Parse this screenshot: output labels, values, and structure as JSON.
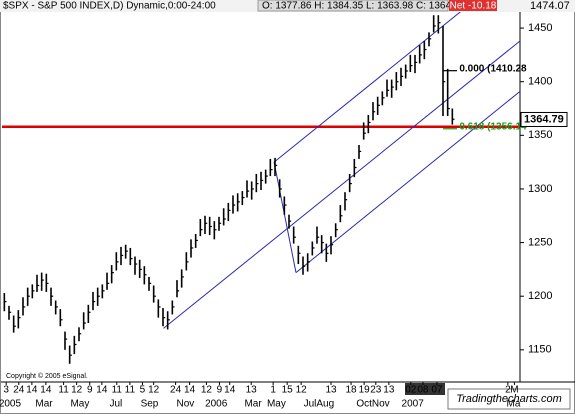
{
  "chart_data": {
    "type": "hlc",
    "symbol_text": "$SPX - S&P 500 INDEX,D) Dynamic,0:00-24:00",
    "ohlc_text": "O: 1377.86 H: 1384.35 L: 1363.98 C: 1364.79",
    "net_text": "Net -10.18",
    "top_price_label": "1474.07",
    "copyright": "Copyright © 2005 eSignal.",
    "watermark": "Tradingthecharts.com",
    "color": "#000000",
    "high": [
      1203,
      1191,
      1182,
      1187,
      1199,
      1208,
      1211,
      1220,
      1222,
      1221,
      1208,
      1196,
      1188,
      1167,
      1154,
      1163,
      1171,
      1185,
      1192,
      1204,
      1208,
      1211,
      1222,
      1229,
      1241,
      1246,
      1248,
      1245,
      1237,
      1234,
      1228,
      1218,
      1210,
      1197,
      1189,
      1186,
      1196,
      1215,
      1225,
      1241,
      1253,
      1258,
      1272,
      1275,
      1274,
      1270,
      1274,
      1282,
      1287,
      1294,
      1296,
      1298,
      1308,
      1307,
      1314,
      1316,
      1318,
      1328,
      1329,
      1309,
      1293,
      1276,
      1265,
      1247,
      1237,
      1240,
      1251,
      1265,
      1257,
      1249,
      1256,
      1268,
      1285,
      1297,
      1314,
      1328,
      1341,
      1362,
      1369,
      1381,
      1386,
      1391,
      1402,
      1402,
      1409,
      1413,
      1416,
      1425,
      1425,
      1434,
      1438,
      1446,
      1462,
      1462,
      1452,
      1412,
      1375
    ],
    "low": [
      1186,
      1178,
      1166,
      1170,
      1182,
      1191,
      1198,
      1204,
      1205,
      1204,
      1191,
      1183,
      1172,
      1150,
      1137,
      1146,
      1158,
      1169,
      1175,
      1187,
      1191,
      1198,
      1206,
      1212,
      1224,
      1229,
      1235,
      1229,
      1220,
      1217,
      1211,
      1205,
      1194,
      1180,
      1172,
      1169,
      1183,
      1199,
      1208,
      1224,
      1236,
      1245,
      1256,
      1258,
      1257,
      1253,
      1261,
      1266,
      1270,
      1277,
      1279,
      1285,
      1292,
      1290,
      1297,
      1299,
      1305,
      1312,
      1312,
      1292,
      1276,
      1263,
      1249,
      1230,
      1220,
      1223,
      1238,
      1249,
      1240,
      1232,
      1239,
      1255,
      1269,
      1280,
      1297,
      1311,
      1328,
      1346,
      1352,
      1364,
      1369,
      1378,
      1386,
      1385,
      1392,
      1396,
      1403,
      1409,
      1408,
      1417,
      1421,
      1433,
      1446,
      1445,
      1368,
      1368,
      1360
    ],
    "close": [
      1195,
      1185,
      1172,
      1180,
      1190,
      1200,
      1205,
      1210,
      1215,
      1212,
      1200,
      1190,
      1178,
      1160,
      1145,
      1155,
      1165,
      1175,
      1185,
      1195,
      1200,
      1205,
      1212,
      1222,
      1232,
      1238,
      1242,
      1235,
      1230,
      1225,
      1220,
      1212,
      1200,
      1190,
      1180,
      1178,
      1190,
      1205,
      1218,
      1232,
      1245,
      1252,
      1262,
      1268,
      1265,
      1262,
      1268,
      1272,
      1280,
      1285,
      1288,
      1292,
      1298,
      1300,
      1305,
      1308,
      1312,
      1318,
      1322,
      1300,
      1285,
      1270,
      1255,
      1240,
      1228,
      1232,
      1245,
      1255,
      1250,
      1240,
      1248,
      1262,
      1275,
      1290,
      1305,
      1320,
      1335,
      1352,
      1362,
      1372,
      1378,
      1385,
      1392,
      1395,
      1400,
      1405,
      1410,
      1415,
      1418,
      1425,
      1430,
      1440,
      1452,
      1455,
      1400,
      1375,
      1365
    ],
    "xlim": [
      0,
      111
    ],
    "ylim": [
      1120,
      1465
    ],
    "yticks": [
      1150,
      1200,
      1250,
      1300,
      1350,
      1400,
      1450
    ],
    "xticks": [
      {
        "value": 0.9,
        "label": "3"
      },
      {
        "value": 3.6,
        "label": "24"
      },
      {
        "value": 6.4,
        "label": "14"
      },
      {
        "value": 9.4,
        "label": "14"
      },
      {
        "value": 13.2,
        "label": "11"
      },
      {
        "value": 16,
        "label": "12"
      },
      {
        "value": 18.8,
        "label": "9"
      },
      {
        "value": 21.4,
        "label": "14"
      },
      {
        "value": 24.6,
        "label": "11"
      },
      {
        "value": 27.4,
        "label": "11"
      },
      {
        "value": 30.1,
        "label": "5"
      },
      {
        "value": 32.5,
        "label": "12"
      },
      {
        "value": 37.2,
        "label": "24"
      },
      {
        "value": 40.2,
        "label": "14"
      },
      {
        "value": 43.8,
        "label": "12"
      },
      {
        "value": 46.6,
        "label": "9"
      },
      {
        "value": 48.8,
        "label": "14"
      },
      {
        "value": 53.4,
        "label": "13"
      },
      {
        "value": 58.1,
        "label": "1"
      },
      {
        "value": 61.1,
        "label": "15"
      },
      {
        "value": 64.1,
        "label": "12"
      },
      {
        "value": 70.5,
        "label": "13"
      },
      {
        "value": 74.8,
        "label": "18"
      },
      {
        "value": 77.6,
        "label": "19"
      },
      {
        "value": 80.1,
        "label": "23"
      },
      {
        "value": 82.9,
        "label": "13"
      },
      {
        "value": 87.6,
        "label": "02"
      },
      {
        "value": 90.2,
        "label": "08"
      },
      {
        "value": 93.2,
        "label": "07"
      },
      {
        "value": 108.4,
        "label": "2"
      },
      {
        "value": 109.8,
        "label": "M"
      }
    ],
    "xticks2": [
      {
        "value": 1.7,
        "label": "2005"
      },
      {
        "value": 9,
        "label": "Mar"
      },
      {
        "value": 16.7,
        "label": "May"
      },
      {
        "value": 24.4,
        "label": "Jul"
      },
      {
        "value": 31.6,
        "label": "Sep"
      },
      {
        "value": 39.3,
        "label": "Nov"
      },
      {
        "value": 45.9,
        "label": "2006"
      },
      {
        "value": 53.8,
        "label": "Mar"
      },
      {
        "value": 58.8,
        "label": "May"
      },
      {
        "value": 67.9,
        "label": "JulAug"
      },
      {
        "value": 79.5,
        "label": "OctNov"
      },
      {
        "value": 88,
        "label": "2007"
      },
      {
        "value": 109.6,
        "label": "Ma"
      }
    ],
    "trendlines": [
      {
        "color": "#2a2ab0",
        "x": [
          58.3,
          111
        ],
        "y": [
          1325,
          1510
        ]
      },
      {
        "color": "#2a2ab0",
        "x": [
          34.6,
          111
        ],
        "y": [
          1170,
          1438
        ]
      },
      {
        "color": "#2a2ab0",
        "x": [
          63,
          111
        ],
        "y": [
          1222,
          1391
        ]
      },
      {
        "color": "#2a2ab0",
        "x": [
          58.3,
          63
        ],
        "y": [
          1325,
          1222
        ]
      }
    ],
    "hline": {
      "value": 1358,
      "color": "#dd0000"
    },
    "last_value": 1364.79,
    "levels": [
      {
        "label": "0.000 (1410.28",
        "value": 1410.28,
        "color": "#000000"
      },
      {
        "label": "0.618 (1356.14",
        "value": 1356.14,
        "color": "#1a9a1a"
      }
    ]
  }
}
